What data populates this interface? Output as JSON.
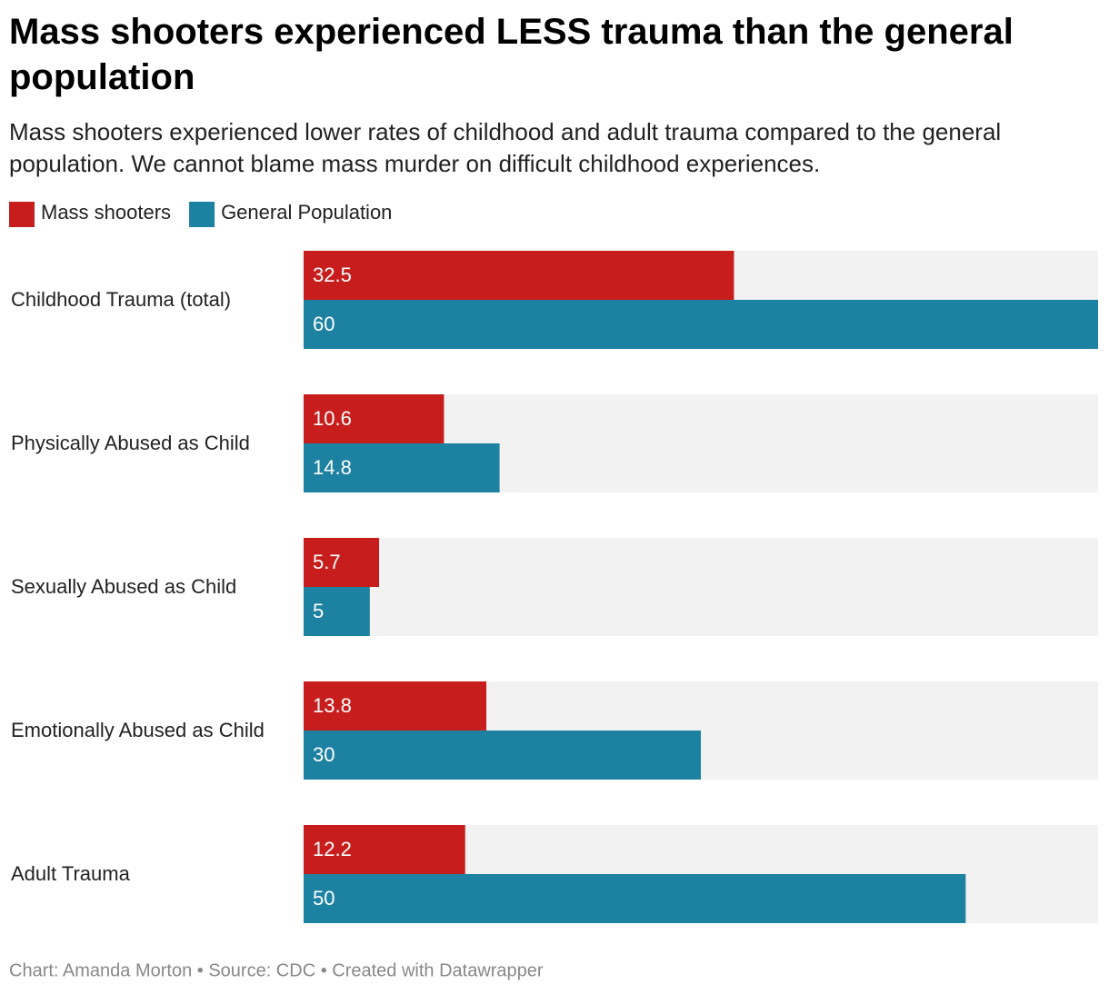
{
  "chart_data": {
    "type": "grouped-bar",
    "title": "Mass shooters experienced LESS trauma than the general population",
    "subtitle": "Mass shooters experienced lower rates of childhood and adult trauma compared to the general population. We cannot blame mass murder on difficult childhood experiences.",
    "categories": [
      "Childhood Trauma (total)",
      "Physically Abused as Child",
      "Sexually Abused as Child",
      "Emotionally Abused as Child",
      "Adult Trauma"
    ],
    "series": [
      {
        "name": "Mass shooters",
        "color": "#c71e1d",
        "values": [
          32.5,
          10.6,
          5.7,
          13.8,
          12.2
        ]
      },
      {
        "name": "General Population",
        "color": "#1d81a2",
        "values": [
          60,
          14.8,
          5,
          30,
          50
        ]
      }
    ],
    "xlim": [
      0,
      60
    ],
    "footer": "Chart: Amanda Morton • Source: CDC • Created with Datawrapper"
  }
}
